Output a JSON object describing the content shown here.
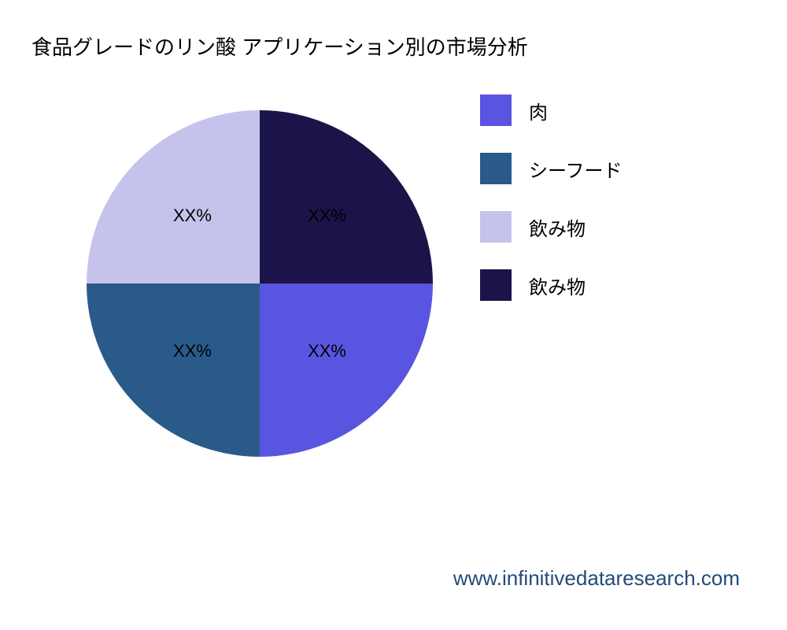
{
  "title": "食品グレードのリン酸 アプリケーション別の市場分析",
  "footer": "www.infinitivedataresearch.com",
  "footer_color": "#234a7a",
  "background_color": "#ffffff",
  "chart": {
    "type": "pie",
    "radius": 220,
    "label_fontsize": 22,
    "title_fontsize": 26,
    "slices": [
      {
        "label": "XX%",
        "value": 25,
        "color": "#1a1448",
        "legend": "飲み物"
      },
      {
        "label": "XX%",
        "value": 25,
        "color": "#5a55e0",
        "legend": "肉"
      },
      {
        "label": "XX%",
        "value": 25,
        "color": "#2a5a8a",
        "legend": "シーフード"
      },
      {
        "label": "XX%",
        "value": 25,
        "color": "#c5c3eb",
        "legend": "飲み物"
      }
    ],
    "legend_order": [
      {
        "label": "肉",
        "color": "#5a55e0"
      },
      {
        "label": "シーフード",
        "color": "#2a5a8a"
      },
      {
        "label": "飲み物",
        "color": "#c5c3eb"
      },
      {
        "label": "飲み物",
        "color": "#1a1448"
      }
    ],
    "legend_swatch_size": 40,
    "legend_fontsize": 24
  }
}
